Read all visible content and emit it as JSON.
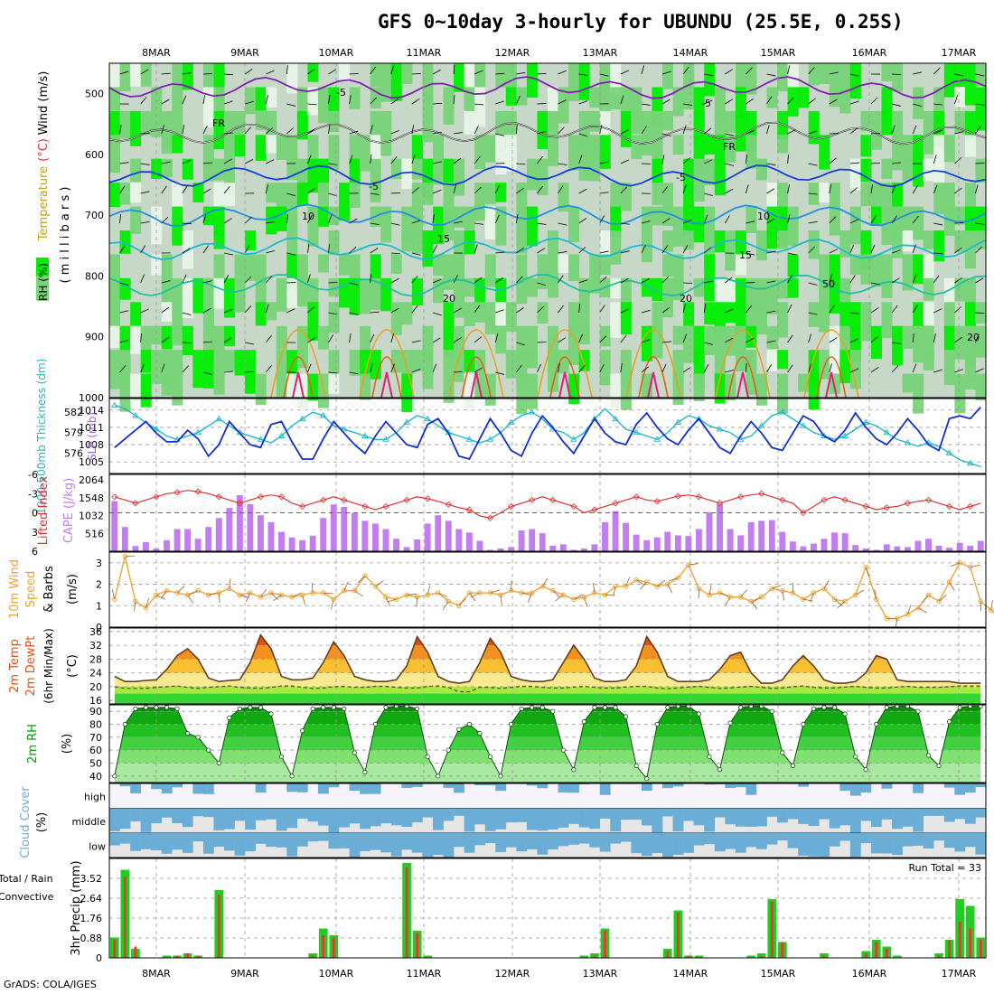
{
  "title": "GFS 0~10day 3-hourly for UBUNDU (25.5E, 0.25S)",
  "credit": "GrADS: COLA/IGES",
  "date_axis": [
    "8MAR",
    "9MAR",
    "10MAR",
    "11MAR",
    "12MAR",
    "13MAR",
    "14MAR",
    "15MAR",
    "16MAR",
    "17MAR"
  ],
  "colors": {
    "rh_green": "#00ee00",
    "rh_mid": "#77d477",
    "rh_light": "#c8d8c8",
    "rh_pale": "#eaf4ea",
    "slp": "#1030d0",
    "thickness": "#20b8c8",
    "lifted_index": "#e03030",
    "cape": "#c27ef0",
    "wind10m": "#f0a030",
    "temp_hot": "#e85010",
    "temp_warm": "#f8c030",
    "rh2m": "#00a000",
    "cloud": "#6aaed8",
    "precip_total": "#22cc22",
    "precip_conv": "#ee3333"
  },
  "chart_data": [
    {
      "type": "heatmap",
      "name_text": "Cross section",
      "ylabel_parts": {
        "rh": "RH (%)",
        "temperature": "Temperature",
        "temp_unit": "(°C)",
        "wind": "Wind (m/s)",
        "pressure": "( m i l l i b a r s )"
      },
      "y_ticks": [
        "500",
        "600",
        "700",
        "800",
        "900",
        "1000"
      ],
      "ylim": [
        450,
        1000
      ],
      "contour_labels": [
        "-5",
        "-5",
        "FR",
        "FR",
        "-5",
        "-5",
        "10",
        "15",
        "10",
        "15",
        "20",
        "20",
        "20",
        "50"
      ],
      "temperature_isotherms_C": [
        -5,
        0,
        5,
        10,
        15,
        20
      ]
    },
    {
      "type": "line",
      "ylabel_left": "1000-500mb Thickness (dm)",
      "ylabel_right": "SLP (mb)",
      "left_ticks": [
        "582",
        "579",
        "576"
      ],
      "right_ticks": [
        "1014",
        "1011",
        "1008",
        "1005"
      ],
      "series": [
        {
          "name": "SLP (mb)",
          "values": [
            1007.5,
            1009,
            1010.5,
            1012,
            1010,
            1008.5,
            1008.5,
            1010.5,
            1009,
            1006,
            1008,
            1012,
            1010,
            1008,
            1007.5,
            1011.5,
            1012,
            1008.5,
            1005.5,
            1005.5,
            1009,
            1012,
            1010,
            1008,
            1006.5,
            1009.5,
            1012,
            1010,
            1008,
            1007.5,
            1011.5,
            1012.5,
            1010,
            1006,
            1005.5,
            1009,
            1012.5,
            1010,
            1007,
            1006,
            1010,
            1013,
            1011,
            1008.5,
            1006.5,
            1009.5,
            1012.5,
            1010,
            1008.5,
            1008,
            1011.5,
            1013.5,
            1011,
            1009,
            1008,
            1010.5,
            1012.5,
            1010,
            1007.5,
            1006.5,
            1009.5,
            1012,
            1010,
            1007.5,
            1007,
            1010,
            1013,
            1012,
            1009.5,
            1008.5,
            1010.5,
            1013.5,
            1011,
            1009,
            1008,
            1010,
            1012.5,
            1010.5,
            1008,
            1007,
            1012.5,
            1013,
            1012.5,
            1014.5
          ]
        },
        {
          "name": "1000-500mb Thickness (dm)",
          "values": [
            583,
            582.5,
            581.5,
            580.5,
            579.5,
            578.5,
            578,
            578.5,
            579,
            580,
            581,
            580,
            579,
            578.5,
            578,
            577.5,
            578.5,
            580,
            581,
            582,
            581.5,
            580,
            579.5,
            579,
            578.5,
            578,
            578,
            579,
            580.5,
            581.5,
            581,
            580,
            579,
            578.5,
            578,
            577.5,
            578,
            579,
            580.5,
            581.5,
            582,
            581,
            579.5,
            579,
            578,
            579,
            581,
            582.5,
            581,
            579.5,
            579,
            578.5,
            578,
            579,
            580.5,
            581.5,
            581,
            580,
            579.5,
            579,
            578,
            578.5,
            580,
            581.5,
            582,
            581,
            580,
            579,
            578.5,
            578,
            578.5,
            579.5,
            580.5,
            580,
            579,
            578,
            577.5,
            577,
            577.5,
            577,
            576,
            575,
            574.5,
            574
          ]
        }
      ]
    },
    {
      "type": "bar",
      "ylabel_left": "Lifted Index",
      "ylabel_right": "CAPE (J/kg)",
      "left_ticks": [
        "-6",
        "-3",
        "0",
        "3",
        "6"
      ],
      "right_ticks": [
        "2064",
        "1548",
        "1032",
        "516"
      ],
      "cape_values": [
        1450,
        700,
        150,
        260,
        80,
        320,
        640,
        640,
        360,
        700,
        960,
        1250,
        1620,
        1360,
        1040,
        840,
        560,
        400,
        320,
        450,
        960,
        1350,
        1280,
        1100,
        880,
        800,
        640,
        360,
        120,
        340,
        800,
        1040,
        880,
        640,
        540,
        300,
        40,
        80,
        120,
        600,
        640,
        520,
        160,
        200,
        40,
        80,
        200,
        840,
        1160,
        820,
        480,
        320,
        400,
        560,
        460,
        440,
        640,
        1120,
        1360,
        640,
        460,
        840,
        880,
        900,
        560,
        280,
        140,
        220,
        360,
        540,
        520,
        180,
        80,
        40,
        200,
        140,
        120,
        300,
        360,
        160,
        100,
        240,
        160,
        300
      ],
      "lifted_index": [
        -2.5,
        -2,
        -1.5,
        -2,
        -2.5,
        -3,
        -3.2,
        -3.5,
        -3.3,
        -3,
        -2.5,
        -2,
        -1.5,
        -2,
        -2.5,
        -2.8,
        -2.5,
        -1.5,
        -1,
        -1.5,
        -2,
        -2.5,
        -2,
        -1.5,
        -1,
        -0.5,
        -1,
        -1.5,
        -2,
        -2.5,
        -2.2,
        -1.8,
        -1.3,
        -0.8,
        -0.5,
        0.5,
        0.8,
        0,
        -1,
        -1.5,
        -2,
        -2.5,
        -2,
        -1.5,
        -1,
        0,
        -0.5,
        -1,
        -1.5,
        -2,
        -2.5,
        -2,
        -1.8,
        -2.2,
        -2.6,
        -2.8,
        -2.5,
        -2,
        -1.5,
        -2,
        -2.5,
        -2.8,
        -3,
        -2.5,
        -2,
        -1.5,
        0,
        -1,
        -2,
        -2.5,
        -2,
        -1.5,
        -1,
        -0.5,
        -0.8,
        -1,
        -1.5,
        -1.8,
        -2,
        -1.5,
        -1,
        -0.5,
        -1,
        -1.5
      ]
    },
    {
      "type": "line",
      "ylabel_parts": [
        "10m Wind",
        "Speed",
        "& Barbs"
      ],
      "ylabel_right": "(m/s)",
      "ticks": [
        "3",
        "2",
        "1",
        "0"
      ],
      "ylim": [
        0,
        3.5
      ],
      "values": [
        1.3,
        3.3,
        1.2,
        0.9,
        1.5,
        1.7,
        1.6,
        1.5,
        1.7,
        1.5,
        1.6,
        1.8,
        1.5,
        1.6,
        1.4,
        1.6,
        1.5,
        1.4,
        1.5,
        1.6,
        1.6,
        1.3,
        1.7,
        1.7,
        2.4,
        1.9,
        1.4,
        1.3,
        1.5,
        1.4,
        1.5,
        1.6,
        1.2,
        1.0,
        1.6,
        1.6,
        1.6,
        1.5,
        1.7,
        1.6,
        1.6,
        1.9,
        1.7,
        1.5,
        1.3,
        1.4,
        1.6,
        1.5,
        1.9,
        1.9,
        2.2,
        2.1,
        1.9,
        2.0,
        2.3,
        2.9,
        1.8,
        1.5,
        1.6,
        1.4,
        1.4,
        1.2,
        1.4,
        1.8,
        1.7,
        1.6,
        1.3,
        1.6,
        1.8,
        1.3,
        1.2,
        1.5,
        2.8,
        1.3,
        0.4,
        0.4,
        0.6,
        0.9,
        1.5,
        1.2,
        2.1,
        3.0,
        2.8,
        1.2,
        0.8,
        0.3
      ]
    },
    {
      "type": "area",
      "ylabel_parts": [
        "2m Temp",
        "2m DewPt",
        "(6hr Min/Max)"
      ],
      "ylabel_right": "(°C)",
      "ticks": [
        "36",
        "32",
        "28",
        "24",
        "20",
        "16"
      ],
      "ylim": [
        15,
        37
      ],
      "temperature": [
        23,
        21.5,
        21.5,
        21.8,
        22,
        25,
        29,
        31,
        28,
        22.5,
        21.5,
        21.8,
        22,
        27,
        35,
        31,
        23,
        22,
        22,
        22.5,
        27,
        33,
        29,
        23,
        22,
        21.5,
        21.5,
        22,
        26,
        34.5,
        30,
        23,
        21.5,
        21,
        21.5,
        27,
        34,
        30,
        23,
        22,
        21.5,
        21.5,
        22,
        27,
        32,
        28,
        22.5,
        21.5,
        21.5,
        22,
        26,
        34.5,
        30,
        23,
        21.5,
        21.5,
        21.5,
        22,
        25,
        29,
        30,
        24,
        21,
        21,
        22,
        26,
        29,
        26,
        22,
        21,
        21,
        21.5,
        24,
        29,
        28,
        22,
        21.5,
        21.5,
        21.5,
        21.5,
        21.5,
        21,
        21,
        21
      ],
      "dewpoint": [
        20,
        19.5,
        19.5,
        19.5,
        19.8,
        20,
        20.2,
        19.8,
        19.5,
        19.8,
        20,
        20.2,
        19.8,
        19.6,
        19.5,
        19.8,
        20.2,
        20.2,
        19.8,
        19.5,
        19.6,
        20,
        20.1,
        19.8,
        19.8,
        20.1,
        20.1,
        19.8,
        19.6,
        19.6,
        20.1,
        20.2,
        19.8,
        18.5,
        18.5,
        19.8,
        19.8,
        19.5,
        19.8,
        20.1,
        20.1,
        19.8,
        19.6,
        19.6,
        19.9,
        20.1,
        19.8,
        19.6,
        19.6,
        19.9,
        20.1,
        20.1,
        19.6,
        19.4,
        19.6,
        19.9,
        20.1,
        19.8,
        19.5,
        19.6,
        19.9,
        20.1,
        19.8,
        19.5,
        19.6,
        20,
        20.2,
        19.8,
        19.6,
        19.6,
        19.9,
        20.1,
        19.8,
        19.6,
        19.6,
        19.9,
        20.1,
        19.8,
        19.8,
        19.8,
        20,
        20.2,
        20.2,
        20.2
      ]
    },
    {
      "type": "area",
      "ylabel": "2m RH",
      "ylabel_right": "(%)",
      "ticks": [
        "90",
        "80",
        "70",
        "60",
        "50",
        "40"
      ],
      "ylim": [
        35,
        95
      ],
      "values": [
        40,
        80,
        92,
        93,
        93,
        93,
        92,
        73,
        70,
        60,
        50,
        85,
        92,
        93,
        93,
        88,
        55,
        40,
        75,
        92,
        93,
        93,
        92,
        58,
        43,
        80,
        93,
        94,
        94,
        92,
        55,
        40,
        60,
        76,
        80,
        73,
        55,
        40,
        80,
        92,
        93,
        93,
        90,
        60,
        45,
        82,
        93,
        93,
        93,
        86,
        48,
        38,
        80,
        93,
        94,
        94,
        88,
        55,
        45,
        81,
        93,
        94,
        94,
        90,
        58,
        48,
        80,
        92,
        93,
        93,
        88,
        55,
        45,
        80,
        93,
        94,
        94,
        90,
        56,
        48,
        82,
        93,
        94,
        94
      ]
    },
    {
      "type": "heatmap",
      "ylabel": "Cloud Cover",
      "ylabel_right": "(%)",
      "levels": [
        "high",
        "middle",
        "low"
      ]
    },
    {
      "type": "bar",
      "ylabel_left": "Total / Rain",
      "ylabel_left2": "Convective",
      "ylabel_right": "3hr Precip (mm)",
      "run_total_label": "Run Total = 33",
      "ticks": [
        "3.52",
        "2.64",
        "1.76",
        "0.88",
        "0"
      ],
      "ylim": [
        0,
        4.4
      ],
      "total": [
        0.9,
        3.9,
        0.4,
        0,
        0,
        0.1,
        0.1,
        0.2,
        0.1,
        0,
        3.0,
        0,
        0,
        0,
        0,
        0,
        0,
        0,
        0,
        0.2,
        1.3,
        1.0,
        0,
        0,
        0,
        0,
        0,
        0,
        4.2,
        1.2,
        0.1,
        0,
        0,
        0,
        0,
        0,
        0,
        0,
        0,
        0,
        0,
        0,
        0,
        0,
        0,
        0.1,
        0.2,
        1.3,
        0,
        0,
        0,
        0,
        0,
        0.4,
        2.1,
        0.1,
        0.1,
        0,
        0,
        0,
        0,
        0.1,
        0.2,
        2.6,
        0.7,
        0,
        0,
        0,
        0.2,
        0,
        0,
        0,
        0.3,
        0.8,
        0.5,
        0.1,
        0,
        0,
        0,
        0.2,
        0.8,
        2.6,
        2.3,
        0.9
      ],
      "convective": [
        0.8,
        3.6,
        0.5,
        0,
        0,
        0,
        0.1,
        0.2,
        0.1,
        0,
        2.8,
        0,
        0,
        0,
        0,
        0,
        0,
        0,
        0,
        0.1,
        1.0,
        0.9,
        0,
        0,
        0,
        0,
        0,
        0,
        4.0,
        1.1,
        0,
        0,
        0,
        0,
        0,
        0,
        0,
        0,
        0,
        0,
        0,
        0,
        0,
        0,
        0,
        0,
        0.1,
        1.2,
        0,
        0,
        0,
        0,
        0,
        0.3,
        2.0,
        0.1,
        0,
        0,
        0,
        0,
        0,
        0,
        0.1,
        2.5,
        0.7,
        0,
        0,
        0,
        0.1,
        0,
        0,
        0,
        0.2,
        0.7,
        0.4,
        0,
        0,
        0,
        0,
        0.1,
        0.8,
        1.6,
        1.3,
        0.8
      ]
    }
  ]
}
